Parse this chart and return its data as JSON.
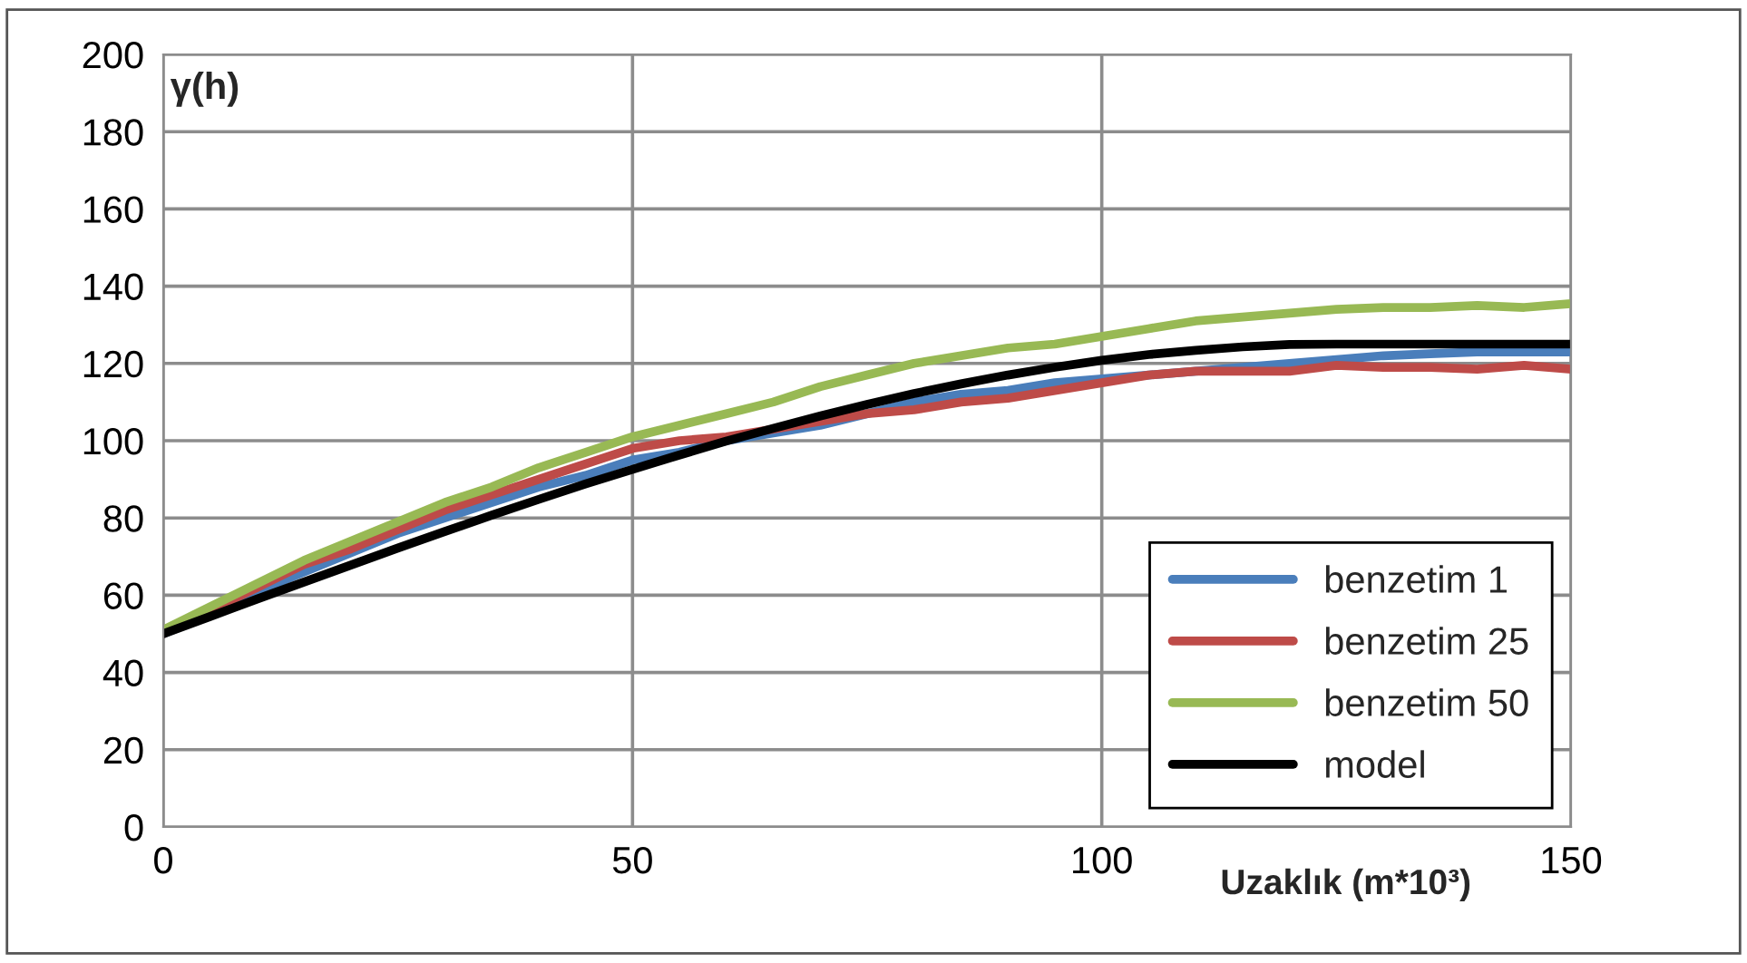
{
  "chart_data": {
    "type": "line",
    "xlabel": "Uzaklık (m*10³)",
    "ylabel": "γ(h)",
    "x": [
      0,
      5,
      10,
      15,
      20,
      25,
      30,
      35,
      40,
      45,
      50,
      55,
      60,
      65,
      70,
      75,
      80,
      85,
      90,
      95,
      100,
      105,
      110,
      115,
      120,
      125,
      130,
      135,
      140,
      145,
      150
    ],
    "series": [
      {
        "name": "benzetim 1",
        "color": "#4a7ebb",
        "values": [
          50,
          55,
          61,
          66,
          71,
          76,
          80,
          84,
          88,
          91,
          95,
          97,
          100,
          102,
          104,
          107,
          110,
          112,
          113,
          115,
          116,
          117,
          118,
          119,
          120,
          121,
          122,
          122.5,
          123,
          123,
          123
        ]
      },
      {
        "name": "benzetim 25",
        "color": "#be4b48",
        "values": [
          50,
          56,
          62,
          68,
          72,
          77,
          82,
          86,
          90,
          94,
          98,
          100,
          101,
          103,
          105,
          107,
          108,
          110,
          111,
          113,
          115,
          117,
          118,
          118,
          118,
          119.5,
          119,
          119,
          118.5,
          119.5,
          118.5
        ]
      },
      {
        "name": "benzetim 50",
        "color": "#98b954",
        "values": [
          51,
          57,
          63,
          69,
          74,
          79,
          84,
          88,
          93,
          97,
          101,
          104,
          107,
          110,
          114,
          117,
          120,
          122,
          124,
          125,
          127,
          129,
          131,
          132,
          133,
          134,
          134.5,
          134.5,
          135,
          134.5,
          135.5
        ]
      },
      {
        "name": "model",
        "color": "#000000",
        "values": [
          50,
          54.5,
          59,
          63.4,
          67.8,
          72.2,
          76.5,
          80.7,
          84.8,
          88.8,
          92.6,
          96.3,
          99.9,
          103.2,
          106.4,
          109.4,
          112.2,
          114.7,
          117,
          119,
          120.8,
          122.3,
          123.4,
          124.3,
          124.9,
          125,
          125,
          125,
          125,
          125,
          125
        ]
      }
    ],
    "xlim": [
      0,
      150
    ],
    "xticks": [
      0,
      50,
      100,
      150
    ],
    "ylim": [
      0,
      200
    ],
    "yticks": [
      0,
      20,
      40,
      60,
      80,
      100,
      120,
      140,
      160,
      180,
      200
    ],
    "grid": true,
    "legend": "lower right"
  }
}
